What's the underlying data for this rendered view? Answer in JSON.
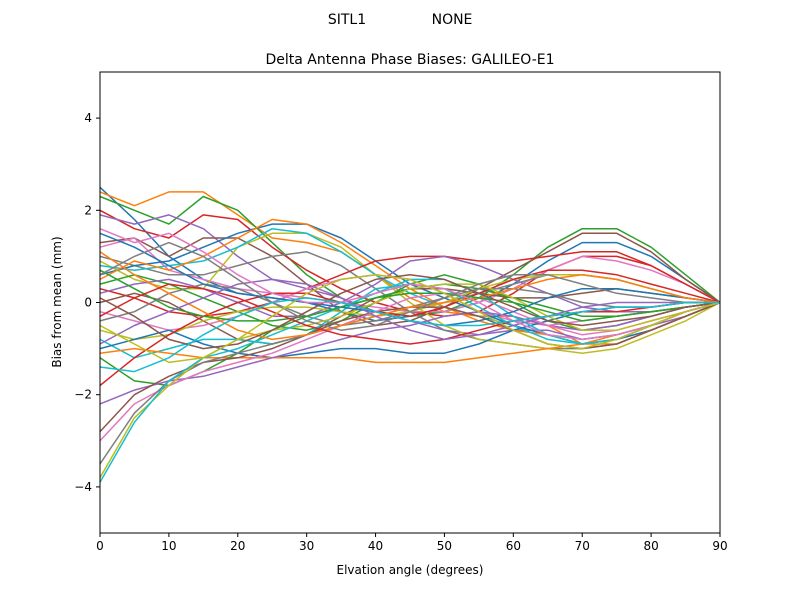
{
  "figure": {
    "suptitle_left": "SITL1",
    "suptitle_right": "NONE"
  },
  "chart_data": {
    "type": "line",
    "title": "Delta Antenna Phase Biases: GALILEO-E1",
    "xlabel": "Elvation angle (degrees)",
    "ylabel": "Bias from mean (mm)",
    "xlim": [
      0,
      90
    ],
    "ylim": [
      -5,
      5
    ],
    "xticks": [
      0,
      10,
      20,
      30,
      40,
      50,
      60,
      70,
      80,
      90
    ],
    "yticks": [
      -4,
      -2,
      0,
      2,
      4
    ],
    "ytick_labels": [
      "−4",
      "−2",
      "0",
      "2",
      "4"
    ],
    "grid": false,
    "legend": "none",
    "colors": [
      "#1f77b4",
      "#ff7f0e",
      "#2ca02c",
      "#d62728",
      "#9467bd",
      "#8c564b",
      "#e377c2",
      "#7f7f7f",
      "#bcbd22",
      "#17becf"
    ],
    "x": [
      0,
      5,
      10,
      15,
      20,
      25,
      30,
      35,
      40,
      45,
      50,
      55,
      60,
      65,
      70,
      75,
      80,
      85,
      90
    ],
    "series": [
      {
        "values": [
          2.5,
          1.8,
          1.0,
          0.5,
          0.2,
          0.1,
          0.0,
          -0.2,
          -0.4,
          -0.3,
          -0.2,
          0.0,
          0.4,
          0.9,
          1.3,
          1.3,
          1.0,
          0.5,
          0.0
        ]
      },
      {
        "values": [
          2.4,
          2.1,
          2.4,
          2.4,
          1.9,
          1.4,
          1.3,
          1.1,
          0.6,
          0.1,
          -0.2,
          -0.3,
          -0.3,
          -0.5,
          -0.9,
          -0.8,
          -0.6,
          -0.3,
          0.0
        ]
      },
      {
        "values": [
          2.3,
          2.0,
          1.7,
          2.3,
          2.0,
          1.3,
          0.6,
          0.1,
          -0.2,
          -0.3,
          -0.2,
          0.1,
          0.6,
          1.2,
          1.6,
          1.6,
          1.2,
          0.6,
          0.0
        ]
      },
      {
        "values": [
          2.0,
          1.6,
          1.4,
          1.9,
          1.8,
          1.2,
          0.7,
          0.3,
          0.0,
          -0.2,
          -0.3,
          -0.2,
          0.2,
          0.7,
          1.0,
          1.0,
          0.8,
          0.4,
          0.0
        ]
      },
      {
        "values": [
          1.9,
          1.7,
          1.9,
          1.6,
          1.0,
          0.5,
          0.3,
          0.1,
          -0.2,
          -0.4,
          -0.6,
          -0.7,
          -0.6,
          -0.6,
          -0.8,
          -0.7,
          -0.5,
          -0.3,
          0.0
        ]
      },
      {
        "values": [
          1.3,
          1.4,
          1.0,
          1.4,
          1.4,
          1.0,
          0.4,
          -0.2,
          -0.5,
          -0.4,
          -0.1,
          0.3,
          0.7,
          1.1,
          1.5,
          1.5,
          1.1,
          0.5,
          0.0
        ]
      },
      {
        "values": [
          1.2,
          1.4,
          0.7,
          0.5,
          0.3,
          0.2,
          0.1,
          0.0,
          -0.1,
          -0.2,
          -0.2,
          0.0,
          0.3,
          0.7,
          1.0,
          0.9,
          0.7,
          0.4,
          0.0
        ]
      },
      {
        "values": [
          1.0,
          0.8,
          0.6,
          0.6,
          0.8,
          1.0,
          1.1,
          0.8,
          0.3,
          -0.2,
          -0.6,
          -0.8,
          -0.9,
          -1.0,
          -1.0,
          -0.9,
          -0.6,
          -0.3,
          0.0
        ]
      },
      {
        "values": [
          0.9,
          0.5,
          0.3,
          0.3,
          1.2,
          1.5,
          1.5,
          1.2,
          0.6,
          0.0,
          -0.5,
          -0.8,
          -0.9,
          -1.0,
          -1.1,
          -1.0,
          -0.7,
          -0.4,
          0.0
        ]
      },
      {
        "values": [
          0.8,
          0.7,
          0.8,
          0.9,
          1.2,
          1.6,
          1.5,
          1.1,
          0.6,
          0.2,
          -0.1,
          -0.3,
          -0.5,
          -0.7,
          -0.8,
          -0.7,
          -0.5,
          -0.2,
          0.0
        ]
      },
      {
        "values": [
          0.6,
          0.8,
          0.9,
          1.2,
          1.5,
          1.7,
          1.7,
          1.4,
          0.9,
          0.4,
          0.1,
          -0.2,
          -0.5,
          -0.7,
          -0.9,
          -0.8,
          -0.6,
          -0.3,
          0.0
        ]
      },
      {
        "values": [
          0.5,
          0.9,
          0.7,
          1.0,
          1.4,
          1.8,
          1.7,
          1.3,
          0.8,
          0.3,
          -0.1,
          -0.4,
          -0.6,
          -0.7,
          -0.9,
          -0.9,
          -0.6,
          -0.3,
          0.0
        ]
      },
      {
        "values": [
          0.4,
          0.6,
          0.4,
          0.1,
          -0.2,
          -0.5,
          -0.6,
          -0.4,
          0.0,
          0.4,
          0.6,
          0.4,
          0.0,
          -0.4,
          -0.6,
          -0.5,
          -0.3,
          -0.1,
          0.0
        ]
      },
      {
        "values": [
          0.3,
          0.1,
          -0.2,
          -0.3,
          -0.2,
          0.0,
          0.3,
          0.6,
          0.9,
          1.0,
          1.0,
          0.9,
          0.9,
          1.0,
          1.1,
          1.1,
          0.8,
          0.4,
          0.0
        ]
      },
      {
        "values": [
          0.2,
          0.4,
          0.5,
          0.3,
          0.0,
          -0.3,
          -0.3,
          0.0,
          0.4,
          0.9,
          1.0,
          0.8,
          0.5,
          0.2,
          -0.1,
          -0.2,
          -0.2,
          -0.1,
          0.0
        ]
      },
      {
        "values": [
          0.0,
          0.2,
          0.0,
          -0.4,
          -0.8,
          -0.9,
          -0.7,
          -0.3,
          0.1,
          0.3,
          0.3,
          0.2,
          0.1,
          0.1,
          0.2,
          0.3,
          0.2,
          0.1,
          0.0
        ]
      },
      {
        "values": [
          -0.2,
          -0.4,
          -0.6,
          -0.5,
          -0.3,
          0.0,
          0.3,
          0.5,
          0.6,
          0.5,
          0.2,
          -0.2,
          -0.4,
          -0.5,
          -0.4,
          -0.3,
          -0.2,
          -0.1,
          0.0
        ]
      },
      {
        "values": [
          -0.4,
          -0.2,
          0.2,
          0.4,
          0.3,
          0.0,
          -0.3,
          -0.5,
          -0.4,
          -0.2,
          0.0,
          0.2,
          0.4,
          0.6,
          0.6,
          0.5,
          0.3,
          0.1,
          0.0
        ]
      },
      {
        "values": [
          -0.6,
          -0.8,
          -0.7,
          -0.4,
          -0.2,
          -0.1,
          -0.1,
          -0.2,
          -0.3,
          -0.2,
          0.0,
          0.3,
          0.5,
          0.6,
          0.6,
          0.5,
          0.3,
          0.1,
          0.0
        ]
      },
      {
        "values": [
          -0.8,
          -1.2,
          -1.0,
          -0.8,
          -0.8,
          -0.9,
          -0.7,
          -0.2,
          0.3,
          0.4,
          0.3,
          -0.1,
          -0.5,
          -0.8,
          -0.9,
          -0.8,
          -0.5,
          -0.2,
          0.0
        ]
      },
      {
        "values": [
          -1.0,
          -0.8,
          -0.6,
          -0.9,
          -1.1,
          -1.2,
          -1.1,
          -1.0,
          -1.0,
          -1.1,
          -1.1,
          -0.9,
          -0.6,
          -0.4,
          -0.2,
          -0.1,
          -0.1,
          0.0,
          0.0
        ]
      },
      {
        "values": [
          -1.1,
          -1.0,
          -1.1,
          -1.2,
          -1.2,
          -1.2,
          -1.2,
          -1.2,
          -1.3,
          -1.3,
          -1.3,
          -1.2,
          -1.1,
          -1.0,
          -0.9,
          -0.7,
          -0.5,
          -0.2,
          0.0
        ]
      },
      {
        "values": [
          -1.2,
          -1.7,
          -1.8,
          -1.5,
          -1.1,
          -0.6,
          -0.3,
          -0.1,
          0.1,
          0.3,
          0.4,
          0.3,
          0.1,
          -0.1,
          -0.3,
          -0.3,
          -0.2,
          -0.1,
          0.0
        ]
      },
      {
        "values": [
          -1.8,
          -1.2,
          -0.7,
          -0.3,
          0.0,
          0.2,
          0.2,
          0.0,
          -0.2,
          -0.3,
          -0.1,
          0.2,
          0.5,
          0.7,
          0.7,
          0.6,
          0.4,
          0.2,
          0.0
        ]
      },
      {
        "values": [
          -2.2,
          -1.9,
          -1.7,
          -1.6,
          -1.4,
          -1.2,
          -1.0,
          -0.8,
          -0.6,
          -0.5,
          -0.3,
          -0.2,
          -0.3,
          -0.5,
          -0.6,
          -0.5,
          -0.3,
          -0.1,
          0.0
        ]
      },
      {
        "values": [
          -2.8,
          -2.0,
          -1.6,
          -1.3,
          -1.2,
          -1.0,
          -0.7,
          -0.4,
          -0.2,
          -0.1,
          -0.1,
          -0.3,
          -0.6,
          -0.9,
          -1.0,
          -0.9,
          -0.6,
          -0.3,
          0.0
        ]
      },
      {
        "values": [
          -3.0,
          -2.2,
          -1.8,
          -1.5,
          -1.3,
          -1.1,
          -0.8,
          -0.5,
          -0.2,
          0.1,
          0.2,
          0.1,
          -0.2,
          -0.5,
          -0.7,
          -0.6,
          -0.4,
          -0.2,
          0.0
        ]
      },
      {
        "values": [
          -3.5,
          -2.4,
          -1.7,
          -1.3,
          -1.1,
          -0.9,
          -0.7,
          -0.5,
          -0.3,
          -0.1,
          0.1,
          0.3,
          0.3,
          0.2,
          0.0,
          -0.1,
          -0.1,
          0.0,
          0.0
        ]
      },
      {
        "values": [
          -3.8,
          -2.5,
          -1.8,
          -1.2,
          -0.8,
          -0.6,
          -0.5,
          -0.3,
          0.0,
          0.3,
          0.4,
          0.4,
          0.1,
          -0.3,
          -0.6,
          -0.6,
          -0.4,
          -0.2,
          0.0
        ]
      },
      {
        "values": [
          -3.9,
          -2.6,
          -1.7,
          -1.2,
          -1.0,
          -0.7,
          -0.4,
          -0.1,
          0.2,
          0.5,
          0.5,
          0.2,
          -0.3,
          -0.7,
          -0.9,
          -0.8,
          -0.5,
          -0.2,
          0.0
        ]
      },
      {
        "values": [
          1.5,
          1.2,
          0.8,
          0.4,
          0.2,
          0.1,
          0.0,
          -0.1,
          -0.2,
          -0.4,
          -0.5,
          -0.4,
          -0.2,
          0.1,
          0.3,
          0.3,
          0.2,
          0.1,
          0.0
        ]
      },
      {
        "values": [
          1.1,
          0.6,
          0.2,
          -0.2,
          -0.6,
          -0.8,
          -0.7,
          -0.5,
          -0.3,
          -0.1,
          0.0,
          0.1,
          0.3,
          0.5,
          0.6,
          0.5,
          0.3,
          0.1,
          0.0
        ]
      },
      {
        "values": [
          0.7,
          0.3,
          -0.1,
          -0.3,
          -0.4,
          -0.4,
          -0.3,
          -0.1,
          0.1,
          0.2,
          0.2,
          0.1,
          0.0,
          -0.2,
          -0.4,
          -0.3,
          -0.2,
          -0.1,
          0.0
        ]
      },
      {
        "values": [
          -0.3,
          0.1,
          0.4,
          0.3,
          0.1,
          -0.2,
          -0.5,
          -0.7,
          -0.8,
          -0.9,
          -0.8,
          -0.6,
          -0.4,
          -0.3,
          -0.2,
          -0.2,
          -0.1,
          0.0,
          0.0
        ]
      },
      {
        "values": [
          -0.9,
          -0.5,
          -0.2,
          0.1,
          0.4,
          0.5,
          0.4,
          0.1,
          -0.3,
          -0.6,
          -0.8,
          -0.7,
          -0.5,
          -0.3,
          -0.1,
          0.0,
          0.0,
          0.0,
          0.0
        ]
      },
      {
        "values": [
          0.1,
          -0.3,
          -0.8,
          -1.0,
          -0.9,
          -0.6,
          -0.2,
          0.2,
          0.5,
          0.6,
          0.5,
          0.2,
          -0.1,
          -0.4,
          -0.5,
          -0.4,
          -0.3,
          -0.1,
          0.0
        ]
      },
      {
        "values": [
          1.6,
          1.3,
          1.5,
          1.1,
          0.6,
          0.2,
          0.0,
          0.0,
          0.2,
          0.4,
          0.3,
          0.0,
          -0.4,
          -0.7,
          -0.8,
          -0.7,
          -0.5,
          -0.2,
          0.0
        ]
      },
      {
        "values": [
          0.6,
          1.0,
          1.3,
          1.0,
          0.5,
          0.0,
          -0.4,
          -0.6,
          -0.5,
          -0.2,
          0.1,
          0.4,
          0.6,
          0.6,
          0.4,
          0.2,
          0.1,
          0.0,
          0.0
        ]
      },
      {
        "values": [
          -0.5,
          -0.9,
          -1.3,
          -1.2,
          -0.8,
          -0.3,
          0.2,
          0.5,
          0.6,
          0.5,
          0.2,
          -0.2,
          -0.6,
          -0.9,
          -1.0,
          -0.8,
          -0.5,
          -0.2,
          0.0
        ]
      },
      {
        "values": [
          -1.4,
          -1.5,
          -1.2,
          -0.7,
          -0.3,
          0.0,
          0.1,
          0.0,
          -0.2,
          -0.4,
          -0.5,
          -0.5,
          -0.4,
          -0.3,
          -0.2,
          -0.1,
          -0.1,
          0.0,
          0.0
        ]
      }
    ]
  }
}
